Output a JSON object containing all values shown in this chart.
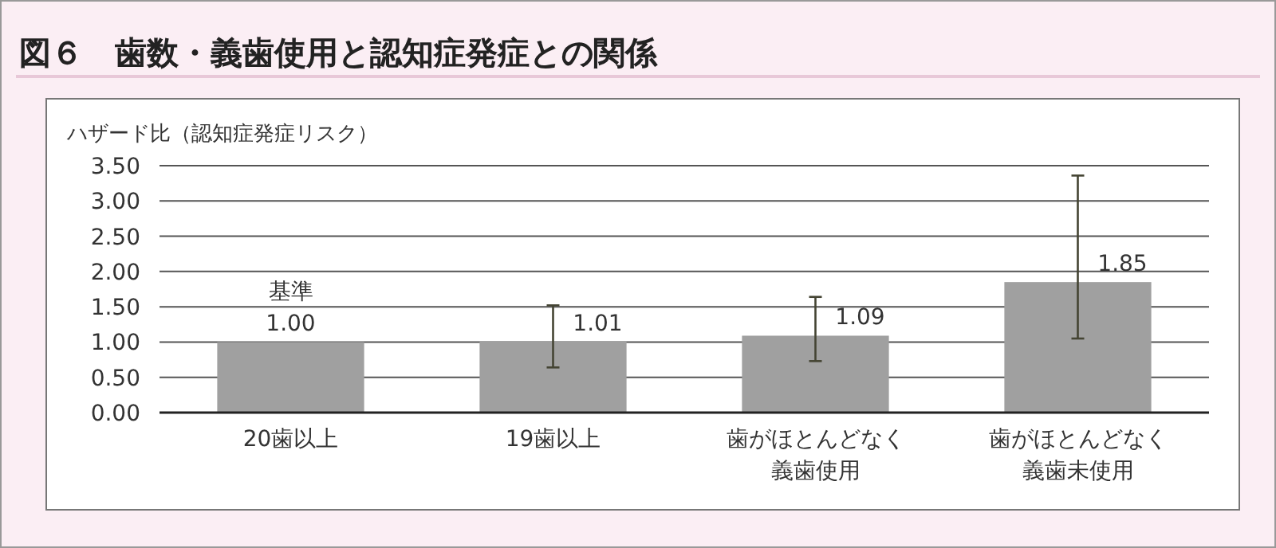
{
  "chart_data": {
    "type": "bar",
    "title": "図６　歯数・義歯使用と認知症発症との関係",
    "ylabel": "ハザード比（認知症発症リスク）",
    "categories": [
      "20歯以上",
      "19歯以上",
      "歯がほとんどなく義歯使用",
      "歯がほとんどなく義歯未使用"
    ],
    "values": [
      1.0,
      1.01,
      1.09,
      1.85
    ],
    "value_labels": [
      "1.00",
      "1.01",
      "1.09",
      "1.85"
    ],
    "color": "#a0a0a0",
    "errors": [
      null,
      [
        0.64,
        1.52
      ],
      [
        0.73,
        1.64
      ],
      [
        1.05,
        3.36
      ]
    ],
    "ylim": [
      0,
      3.5
    ],
    "yticks": [
      {
        "value": 0,
        "label": "0.00"
      },
      {
        "value": 0.5,
        "label": "0.50"
      },
      {
        "value": 1,
        "label": "1.00"
      },
      {
        "value": 1.5,
        "label": "1.50"
      },
      {
        "value": 2,
        "label": "2.00"
      },
      {
        "value": 2.5,
        "label": "2.50"
      },
      {
        "value": 3,
        "label": "3.00"
      },
      {
        "value": 3.5,
        "label": "3.50"
      }
    ],
    "grid": "y",
    "annotations": [
      {
        "text": "基準",
        "x": "20歯以上",
        "y": 1.0
      }
    ]
  }
}
